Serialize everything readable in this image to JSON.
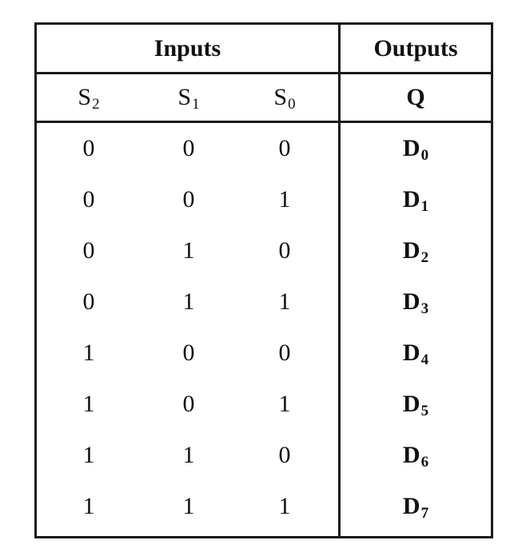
{
  "table": {
    "header_inputs": "Inputs",
    "header_outputs": "Outputs",
    "columns": [
      {
        "base": "S",
        "sub": "2"
      },
      {
        "base": "S",
        "sub": "1"
      },
      {
        "base": "S",
        "sub": "0"
      },
      {
        "base": "Q",
        "sub": ""
      }
    ],
    "rows": [
      {
        "s2": "0",
        "s1": "0",
        "s0": "0",
        "q_base": "D",
        "q_sub": "0"
      },
      {
        "s2": "0",
        "s1": "0",
        "s0": "1",
        "q_base": "D",
        "q_sub": "1"
      },
      {
        "s2": "0",
        "s1": "1",
        "s0": "0",
        "q_base": "D",
        "q_sub": "2"
      },
      {
        "s2": "0",
        "s1": "1",
        "s0": "1",
        "q_base": "D",
        "q_sub": "3"
      },
      {
        "s2": "1",
        "s1": "0",
        "s0": "0",
        "q_base": "D",
        "q_sub": "4"
      },
      {
        "s2": "1",
        "s1": "0",
        "s0": "1",
        "q_base": "D",
        "q_sub": "5"
      },
      {
        "s2": "1",
        "s1": "1",
        "s0": "0",
        "q_base": "D",
        "q_sub": "6"
      },
      {
        "s2": "1",
        "s1": "1",
        "s0": "1",
        "q_base": "D",
        "q_sub": "7"
      }
    ]
  }
}
